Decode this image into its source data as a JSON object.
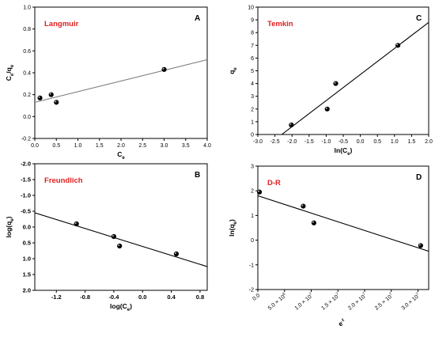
{
  "colors": {
    "model_label": "#e02020",
    "fit_line_A": "#808080",
    "fit_line": "#000000",
    "point": "#000000"
  },
  "chart_data": [
    {
      "panel": "A",
      "type": "scatter",
      "model_label": "Langmuir",
      "xlabel": "C",
      "xlabel_sub": "e",
      "ylabel": "C /q",
      "xlim": [
        0,
        4.0
      ],
      "ylim": [
        -0.2,
        1.0
      ],
      "x_ticks": [
        "0.0",
        "0.5",
        "1.0",
        "1.5",
        "2.0",
        "2.5",
        "3.0",
        "3.5",
        "4.0"
      ],
      "y_ticks": [
        "-0.2",
        "0.0",
        "0.2",
        "0.4",
        "0.6",
        "0.8",
        "1.0"
      ],
      "x_tick_values": [
        0,
        0.5,
        1.0,
        1.5,
        2.0,
        2.5,
        3.0,
        3.5,
        4.0
      ],
      "y_tick_values": [
        -0.2,
        0.0,
        0.2,
        0.4,
        0.6,
        0.8,
        1.0
      ],
      "points": [
        [
          0.12,
          0.17
        ],
        [
          0.38,
          0.2
        ],
        [
          0.5,
          0.13
        ],
        [
          3.0,
          0.43
        ]
      ],
      "fit_line": [
        [
          0,
          0.13
        ],
        [
          4.0,
          0.52
        ]
      ]
    },
    {
      "panel": "C",
      "type": "scatter",
      "model_label": "Temkin",
      "xlabel": "ln(C )",
      "xlabel_sub": "e",
      "ylabel": "q",
      "xlim": [
        -3.0,
        2.0
      ],
      "ylim": [
        0,
        10
      ],
      "x_ticks": [
        "-3.0",
        "-2.5",
        "-2.0",
        "-1.5",
        "-1.0",
        "-0.5",
        "0.0",
        "0.5",
        "1.0",
        "1.5",
        "2.0"
      ],
      "y_ticks": [
        "0",
        "1",
        "2",
        "3",
        "4",
        "5",
        "6",
        "7",
        "8",
        "9",
        "10"
      ],
      "x_tick_values": [
        -3.0,
        -2.5,
        -2.0,
        -1.5,
        -1.0,
        -0.5,
        0.0,
        0.5,
        1.0,
        1.5,
        2.0
      ],
      "y_tick_values": [
        0,
        1,
        2,
        3,
        4,
        5,
        6,
        7,
        8,
        9,
        10
      ],
      "points": [
        [
          -2.02,
          0.75
        ],
        [
          -0.97,
          2.0
        ],
        [
          -0.72,
          4.0
        ],
        [
          1.1,
          7.0
        ]
      ],
      "fit_line": [
        [
          -2.3,
          0
        ],
        [
          2.0,
          8.8
        ]
      ]
    },
    {
      "panel": "B",
      "type": "scatter",
      "model_label": "Freundlich",
      "xlabel": "log(C )",
      "xlabel_sub": "e",
      "ylabel": "log(q )",
      "xlim": [
        -1.5,
        0.9
      ],
      "ylim": [
        2.0,
        -2.0
      ],
      "x_ticks": [
        "-1.2",
        "-0.8",
        "-0.4",
        "0.0",
        "0.4",
        "0.8"
      ],
      "y_ticks": [
        "-2.0",
        "-1.5",
        "-1.0",
        "-0.5",
        "0.0",
        "0.5",
        "1.0",
        "1.5",
        "2.0"
      ],
      "x_tick_values": [
        -1.2,
        -0.8,
        -0.4,
        0.0,
        0.4,
        0.8
      ],
      "y_tick_values": [
        -2.0,
        -1.5,
        -1.0,
        -0.5,
        0.0,
        0.5,
        1.0,
        1.5,
        2.0
      ],
      "points": [
        [
          -0.92,
          -0.1
        ],
        [
          -0.4,
          0.3
        ],
        [
          -0.32,
          0.6
        ],
        [
          0.47,
          0.85
        ]
      ],
      "fit_line": [
        [
          -1.5,
          -0.45
        ],
        [
          0.9,
          1.25
        ]
      ]
    },
    {
      "panel": "D",
      "type": "scatter",
      "model_label": "D-R",
      "xlabel": "ε",
      "ylabel": "ln(q )",
      "xlim": [
        0,
        32000000.0
      ],
      "ylim": [
        -2,
        3
      ],
      "x_ticks": [
        "0.0",
        "5.0 × 10",
        "1.0 × 10",
        "1.5 × 10",
        "2.0 × 10",
        "2.5 × 10",
        "3.0 × 10"
      ],
      "x_ticks_exp": [
        "",
        "6",
        "7",
        "7",
        "7",
        "7",
        "7"
      ],
      "y_ticks": [
        "-2",
        "-1",
        "0",
        "1",
        "2",
        "3"
      ],
      "x_tick_values": [
        0,
        5000000.0,
        10000000.0,
        15000000.0,
        20000000.0,
        25000000.0,
        30000000.0
      ],
      "y_tick_values": [
        -2,
        -1,
        0,
        1,
        2,
        3
      ],
      "points": [
        [
          300000.0,
          1.95
        ],
        [
          8500000.0,
          1.38
        ],
        [
          10500000.0,
          0.7
        ],
        [
          30500000.0,
          -0.22
        ]
      ],
      "fit_line": [
        [
          0,
          1.8
        ],
        [
          32000000.0,
          -0.45
        ]
      ]
    }
  ]
}
